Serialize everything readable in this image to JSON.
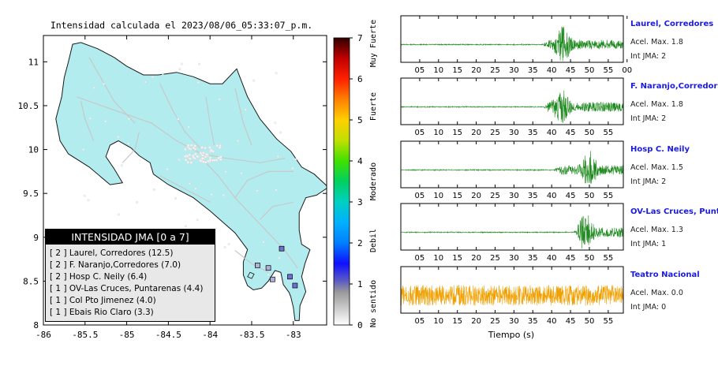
{
  "title": "Intensidad calculada el 2023/08/06_05:33:07_p.m.",
  "map": {
    "x_ticks": [
      "-86",
      "-85.5",
      "-85",
      "-84.5",
      "-84",
      "-83.5",
      "-83"
    ],
    "y_ticks": [
      "8",
      "8.5",
      "9",
      "9.5",
      "10",
      "10.5",
      "11"
    ],
    "colors": {
      "land": "#b3ecee",
      "outline": "#1a1a1a",
      "roads": "#c8c8c8",
      "frame": "#000000"
    },
    "legend": {
      "title": "INTENSIDAD JMA [0 a 7]",
      "items": [
        "[ 2 ]  Laurel, Corredores (12.5)",
        "[ 2 ]  F. Naranjo,Corredores (7.0)",
        "[ 2 ]  Hosp C. Neily (6.4)",
        "[ 1 ]  OV-Las Cruces, Puntarenas (4.4)",
        "[ 1 ]  Col Pto Jimenez (4.0)",
        "[ 1 ]  Ebais Rio Claro (3.3)"
      ]
    },
    "stations": [
      {
        "lon": -82.98,
        "lat": 8.45,
        "intensity": 2
      },
      {
        "lon": -83.04,
        "lat": 8.55,
        "intensity": 2
      },
      {
        "lon": -83.14,
        "lat": 8.87,
        "intensity": 2
      },
      {
        "lon": -83.25,
        "lat": 8.52,
        "intensity": 1
      },
      {
        "lon": -83.3,
        "lat": 8.65,
        "intensity": 1
      },
      {
        "lon": -83.43,
        "lat": 8.68,
        "intensity": 1
      }
    ]
  },
  "color_scale": {
    "ticks": [
      "0",
      "1",
      "2",
      "3",
      "4",
      "5",
      "6",
      "7"
    ],
    "labels": [
      "No sentido",
      "Debil",
      "Moderado",
      "Fuerte",
      "Muy Fuerte"
    ]
  },
  "chart_data": [
    {
      "type": "line",
      "name": "waveforms",
      "xlabel": "Tiempo (s)",
      "x_ticks": [
        "05",
        "10",
        "15",
        "20",
        "25",
        "30",
        "35",
        "40",
        "45",
        "50",
        "55"
      ],
      "xlim": [
        0,
        59
      ],
      "series": [
        {
          "name": "Laurel, Corredores",
          "accel_label": "Acel. Max. 1.8",
          "jma_label": "Int JMA: 2",
          "onset": 38.0,
          "peak": 43.0,
          "color": "#1f8a1f",
          "x_ticks": [
            "05",
            "10",
            "15",
            "20",
            "25",
            "30",
            "35",
            "40",
            "45",
            "50",
            "55",
            "00"
          ]
        },
        {
          "name": "F. Naranjo,Corredores",
          "accel_label": "Acel. Max. 1.8",
          "jma_label": "Int JMA: 2",
          "onset": 38.0,
          "peak": 42.5,
          "color": "#1f8a1f",
          "x_ticks": [
            "05",
            "10",
            "15",
            "20",
            "25",
            "30",
            "35",
            "40",
            "45",
            "50",
            "55"
          ]
        },
        {
          "name": "Hosp C. Neily",
          "accel_label": "Acel. Max. 1.5",
          "jma_label": "Int JMA: 2",
          "onset": 41.0,
          "peak": 50.0,
          "color": "#1f8a1f",
          "x_ticks": [
            "05",
            "10",
            "15",
            "20",
            "25",
            "30",
            "35",
            "40",
            "45",
            "50",
            "55"
          ]
        },
        {
          "name": "OV-Las Cruces, Puntar",
          "accel_label": "Acel. Max. 1.3",
          "jma_label": "Int JMA: 1",
          "onset": 46.0,
          "peak": 49.0,
          "color": "#1f8a1f",
          "x_ticks": [
            "05",
            "10",
            "15",
            "20",
            "25",
            "30",
            "35",
            "40",
            "45",
            "50",
            "55"
          ]
        },
        {
          "name": "Teatro Nacional",
          "accel_label": "Acel. Max. 0.0",
          "jma_label": "Int JMA: 0",
          "onset": 0,
          "peak": 30,
          "color": "#f0a000",
          "noise": true,
          "x_ticks": [
            "05",
            "10",
            "15",
            "20",
            "25",
            "30",
            "35",
            "40",
            "45",
            "50",
            "55"
          ]
        }
      ]
    }
  ]
}
